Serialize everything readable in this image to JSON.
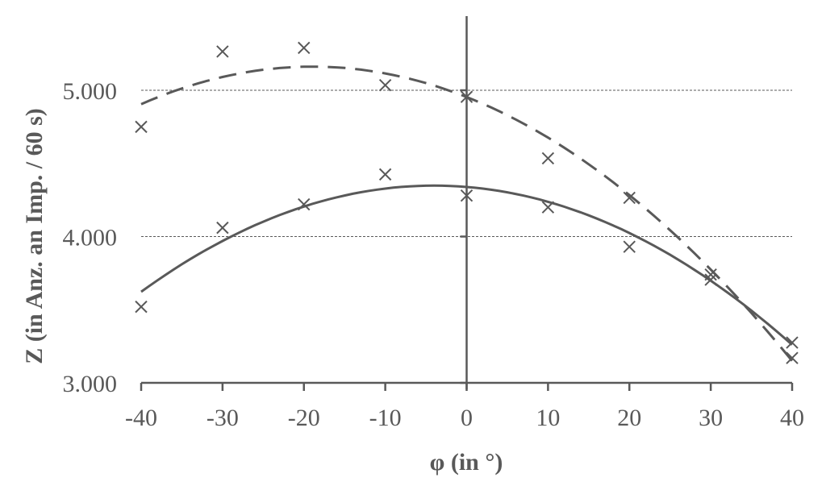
{
  "chart_data": {
    "type": "scatter",
    "title": "",
    "xlabel": "φ (in °)",
    "ylabel": "Z (in Anz. an Imp. / 60 s)",
    "xlim": [
      -40,
      40
    ],
    "ylim": [
      3000,
      5500
    ],
    "x_ticks": [
      -40,
      -30,
      -20,
      -10,
      0,
      10,
      20,
      30,
      40
    ],
    "x_tick_labels": [
      "-40",
      "-30",
      "-20",
      "-10",
      "0",
      "10",
      "20",
      "30",
      "40"
    ],
    "y_ticks": [
      3000,
      4000,
      5000
    ],
    "y_tick_labels": [
      "3.000",
      "4.000",
      "5.000"
    ],
    "grid": {
      "horizontal": true,
      "style": "dotted",
      "lines": [
        4000,
        5000
      ]
    },
    "legend": null,
    "x": [
      -40,
      -30,
      -20,
      -10,
      0,
      10,
      20,
      30,
      40
    ],
    "series": [
      {
        "name": "series-dashed",
        "marker": "x",
        "values": [
          4750,
          5265,
          5290,
          5035,
          4955,
          4535,
          4265,
          3740,
          3170
        ],
        "trendline": {
          "type": "polynomial-2",
          "style": "dashed",
          "points": [
            [
              -40,
              4910
            ],
            [
              -30,
              5080
            ],
            [
              -20,
              5160
            ],
            [
              -10,
              5120
            ],
            [
              0,
              4960
            ],
            [
              10,
              4680
            ],
            [
              20,
              4280
            ],
            [
              30,
              3760
            ],
            [
              40,
              3160
            ]
          ]
        }
      },
      {
        "name": "series-solid",
        "marker": "x",
        "values": [
          3520,
          4060,
          4220,
          4425,
          4280,
          4200,
          3930,
          3705,
          3275
        ],
        "trendline": {
          "type": "polynomial-2",
          "style": "solid",
          "points": [
            [
              -40,
              3615
            ],
            [
              -30,
              3980
            ],
            [
              -20,
              4210
            ],
            [
              -10,
              4325
            ],
            [
              0,
              4330
            ],
            [
              10,
              4240
            ],
            [
              20,
              4025
            ],
            [
              30,
              3700
            ],
            [
              40,
              3260
            ]
          ]
        }
      }
    ],
    "colors": {
      "line": "#595959",
      "grid": "#595959",
      "text": "#595959"
    }
  }
}
